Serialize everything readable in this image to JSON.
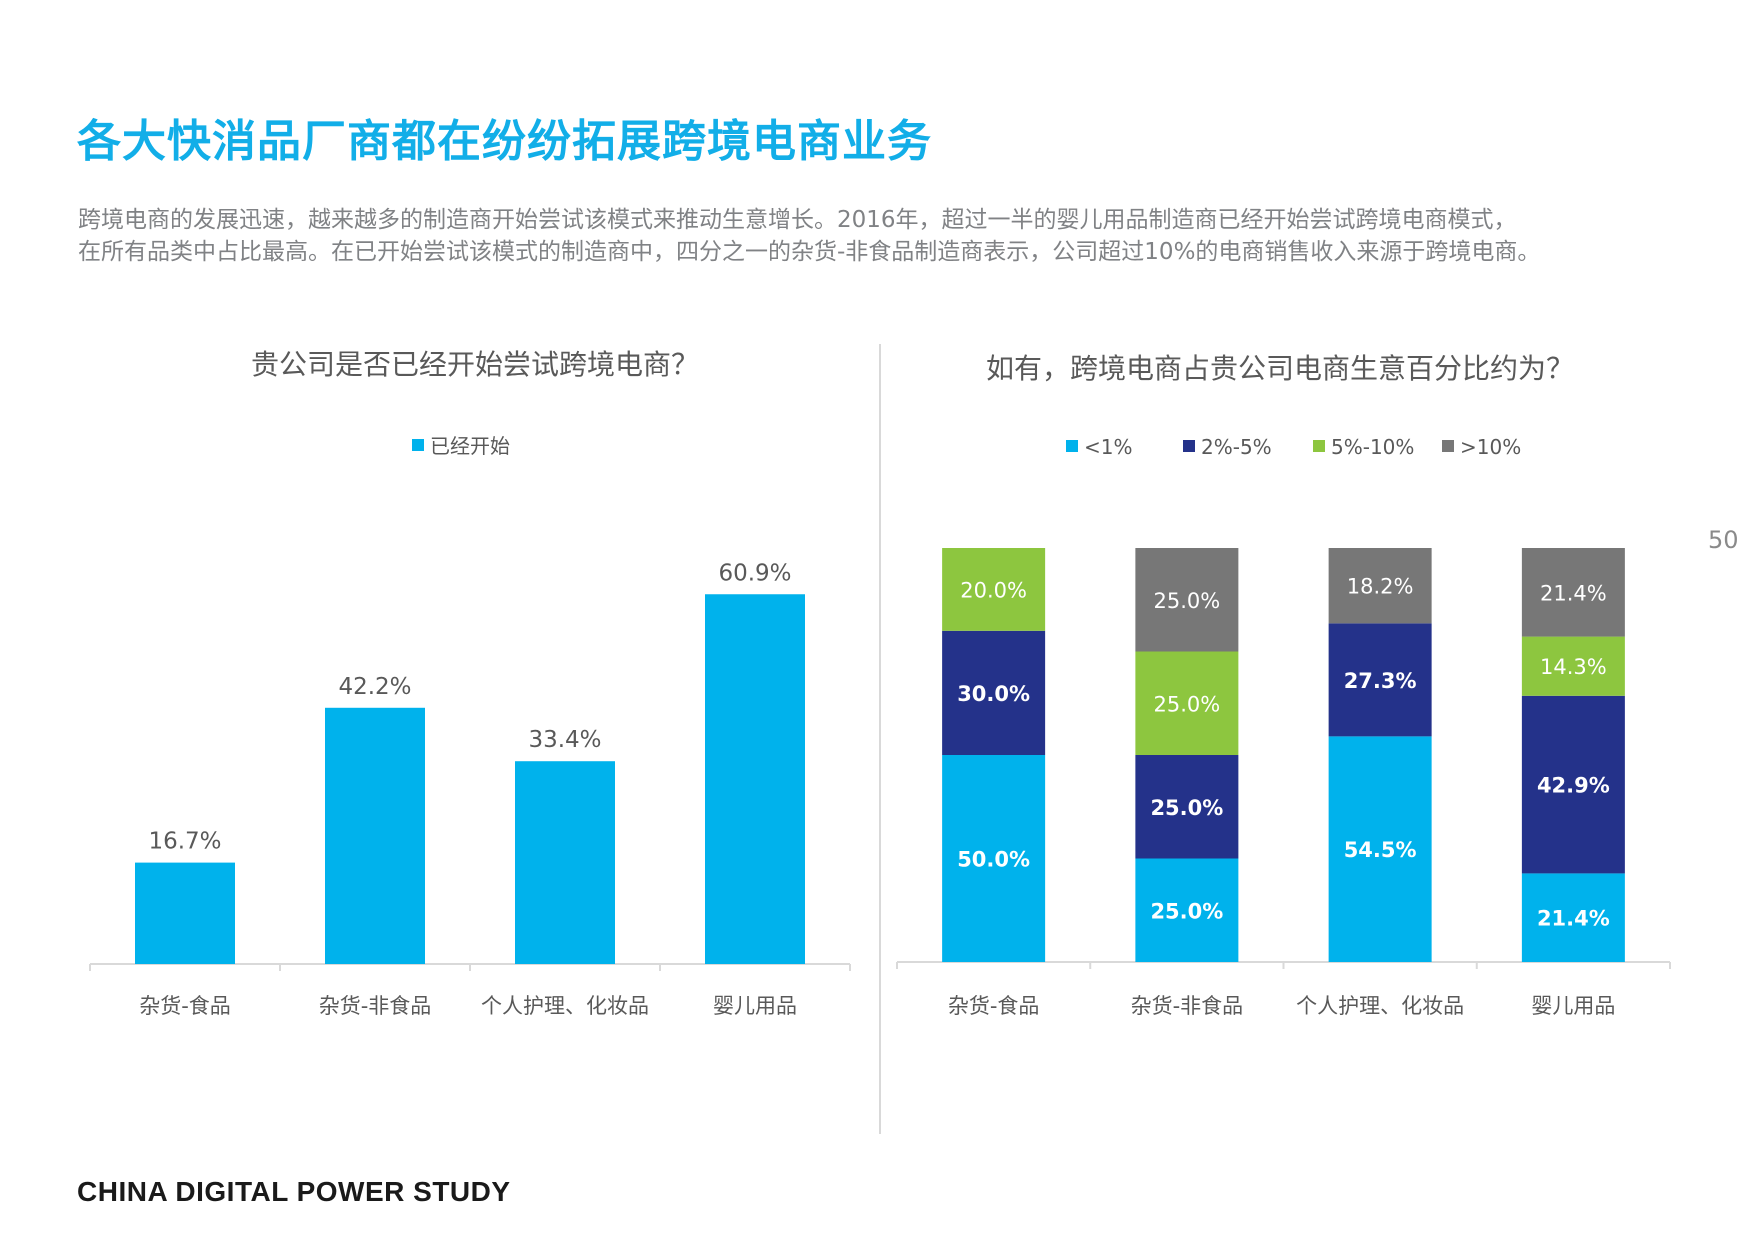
{
  "title": "各大快消品厂商都在纷纷拓展跨境电商业务",
  "subtitle": {
    "line1": "跨境电商的发展迅速，越来越多的制造商开始尝试该模式来推动生意增长。2016年，超过一半的婴儿用品制造商已经开始尝试跨境电商模式，",
    "line2": "在所有品类中占比最高。在已开始尝试该模式的制造商中，四分之一的杂货-非食品制造商表示，公司超过10%的电商销售收入来源于跨境电商。"
  },
  "page_number": "50",
  "footer": "CHINA DIGITAL POWER STUDY",
  "chart_data": [
    {
      "type": "bar",
      "title": "贵公司是否已经开始尝试跨境电商？",
      "categories": [
        "杂货-食品",
        "杂货-非食品",
        "个人护理、化妆品",
        "婴儿用品"
      ],
      "series": [
        {
          "name": "已经开始",
          "values": [
            16.7,
            42.2,
            33.4,
            60.9
          ],
          "color": "#00b2ec"
        }
      ],
      "value_labels": [
        "16.7%",
        "42.2%",
        "33.4%",
        "60.9%"
      ],
      "ylim": [
        0,
        70
      ],
      "grid": false,
      "legend": "top-center"
    },
    {
      "type": "bar",
      "stacked": true,
      "title": "如有，跨境电商占贵公司电商生意百分比约为？",
      "categories": [
        "杂货-食品",
        "杂货-非食品",
        "个人护理、化妆品",
        "婴儿用品"
      ],
      "series": [
        {
          "name": "<1%",
          "values": [
            50.0,
            25.0,
            54.5,
            21.4
          ],
          "labels": [
            "50.0%",
            "25.0%",
            "54.5%",
            "21.4%"
          ],
          "color": "#00b2ec",
          "text_color": "#ffffff",
          "bold": true
        },
        {
          "name": "2%-5%",
          "values": [
            30.0,
            25.0,
            27.3,
            42.9
          ],
          "labels": [
            "30.0%",
            "25.0%",
            "27.3%",
            "42.9%"
          ],
          "color": "#24328a",
          "text_color": "#ffffff",
          "bold": true
        },
        {
          "name": "5%-10%",
          "values": [
            20.0,
            25.0,
            0,
            14.3
          ],
          "labels": [
            "20.0%",
            "25.0%",
            "",
            "14.3%"
          ],
          "color": "#8dc63f",
          "text_color": "#ffffff",
          "bold": false
        },
        {
          "name": ">10%",
          "values": [
            0,
            25.0,
            18.2,
            21.4
          ],
          "labels": [
            "",
            "25.0%",
            "18.2%",
            "21.4%"
          ],
          "color": "#777777",
          "text_color": "#ffffff",
          "bold": false
        }
      ],
      "ylim": [
        0,
        100
      ],
      "grid": false,
      "legend": "top-center"
    }
  ]
}
